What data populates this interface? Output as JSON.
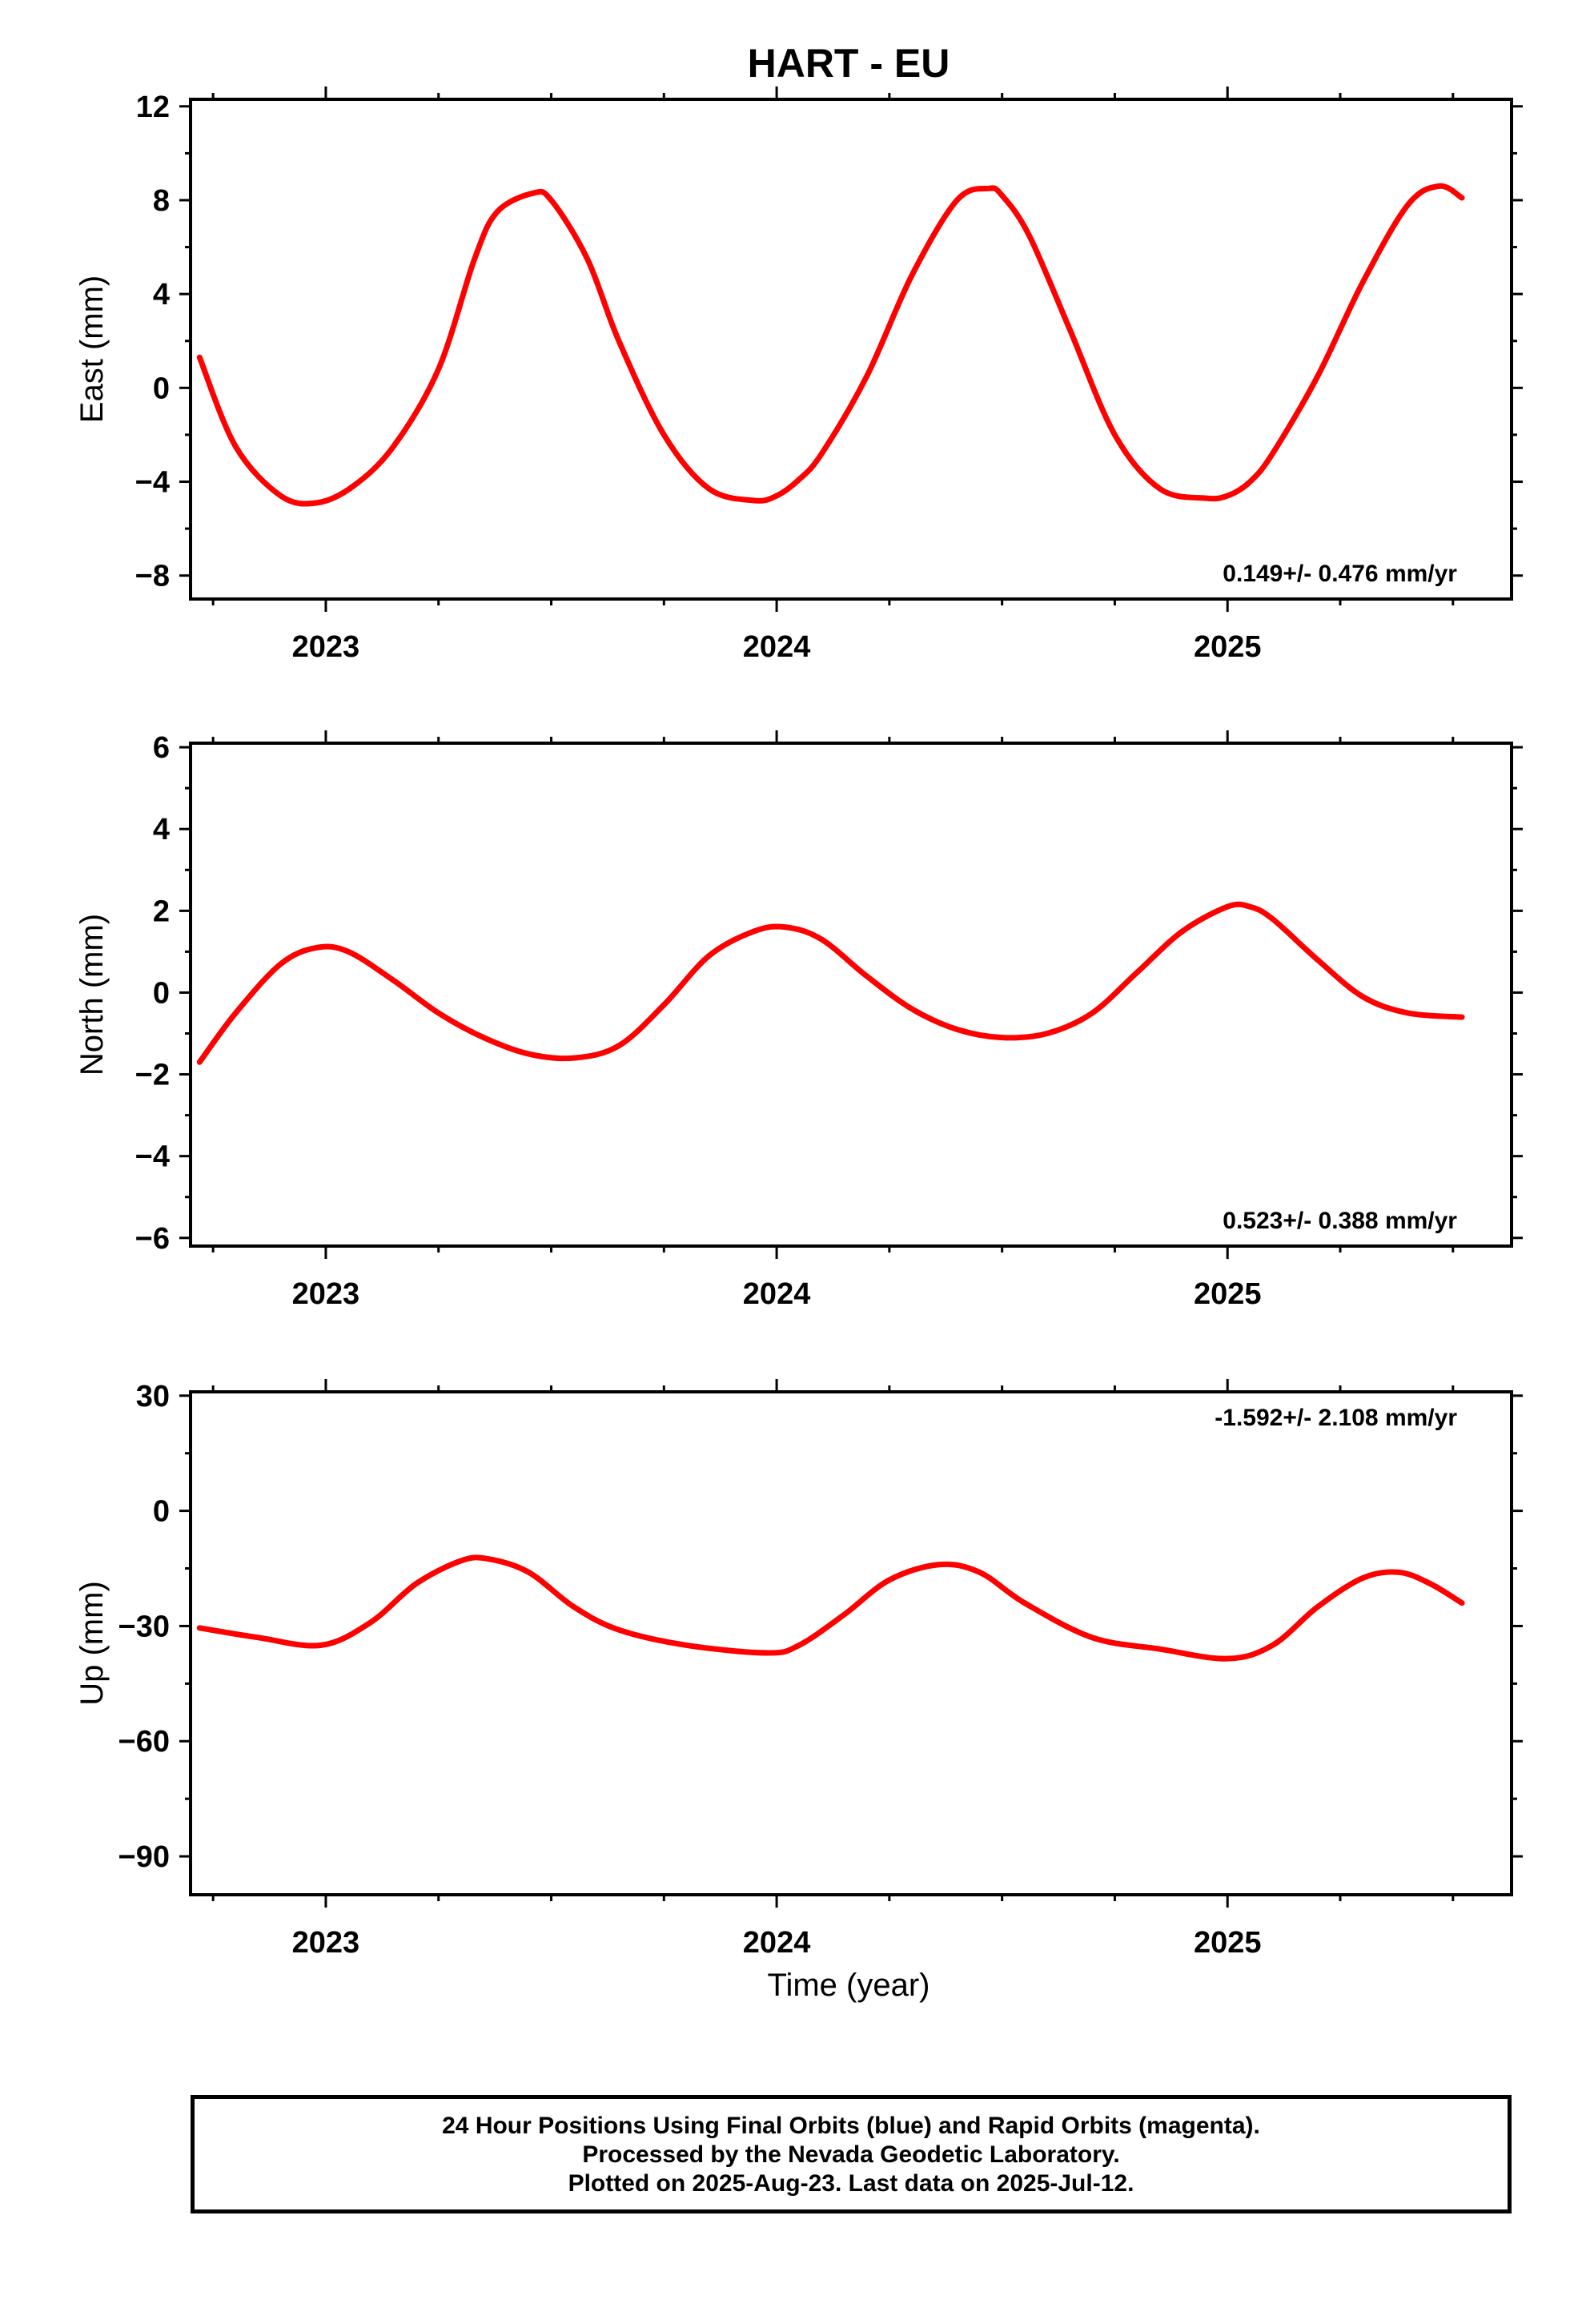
{
  "title": "HART - EU",
  "xlabel": "Time (year)",
  "footer": {
    "line1": "24 Hour Positions Using Final Orbits (blue) and Rapid Orbits (magenta).",
    "line2": "Processed by the Nevada Geodetic Laboratory.",
    "line3": "Plotted on 2025-Aug-23. Last data on 2025-Jul-12."
  },
  "colors": {
    "data": "#0000ff",
    "model": "#ff0000",
    "frame": "#000000"
  },
  "chart_data": [
    {
      "type": "scatter",
      "ylabel": "East (mm)",
      "xlim": [
        2022.7,
        2025.63
      ],
      "ylim": [
        -9.0,
        12.3
      ],
      "xticks": [
        2023,
        2024,
        2025
      ],
      "yticks": [
        -8,
        -4,
        0,
        4,
        8,
        12
      ],
      "rate_text": "0.149+/- 0.476 mm/yr",
      "rate_position": "bottom-right",
      "series": [],
      "model_curve": {
        "x": [
          2022.72,
          2022.8,
          2022.9,
          2022.98,
          2023.06,
          2023.15,
          2023.25,
          2023.33,
          2023.38,
          2023.46,
          2023.5,
          2023.58,
          2023.65,
          2023.75,
          2023.85,
          2023.95,
          2024.0,
          2024.05,
          2024.1,
          2024.2,
          2024.3,
          2024.4,
          2024.47,
          2024.5,
          2024.56,
          2024.65,
          2024.75,
          2024.85,
          2024.95,
          2025.0,
          2025.05,
          2025.1,
          2025.2,
          2025.3,
          2025.4,
          2025.47,
          2025.52
        ],
        "y": [
          1.3,
          -2.5,
          -4.6,
          -4.9,
          -4.2,
          -2.5,
          0.8,
          5.5,
          7.5,
          8.3,
          8.0,
          5.5,
          2.0,
          -2.0,
          -4.3,
          -4.8,
          -4.6,
          -3.9,
          -2.8,
          0.5,
          4.8,
          8.0,
          8.5,
          8.2,
          6.5,
          2.5,
          -2.0,
          -4.3,
          -4.7,
          -4.6,
          -4.0,
          -2.8,
          0.5,
          4.5,
          7.8,
          8.6,
          8.1
        ]
      }
    },
    {
      "type": "scatter",
      "ylabel": "North (mm)",
      "xlim": [
        2022.7,
        2025.63
      ],
      "ylim": [
        -6.2,
        6.1
      ],
      "xticks": [
        2023,
        2024,
        2025
      ],
      "yticks": [
        -6,
        -4,
        -2,
        0,
        2,
        4,
        6
      ],
      "rate_text": "0.523+/- 0.388 mm/yr",
      "rate_position": "bottom-right",
      "series": [],
      "model_curve": {
        "x": [
          2022.72,
          2022.8,
          2022.9,
          2022.98,
          2023.05,
          2023.15,
          2023.25,
          2023.35,
          2023.45,
          2023.55,
          2023.65,
          2023.75,
          2023.85,
          2023.95,
          2024.02,
          2024.1,
          2024.2,
          2024.3,
          2024.4,
          2024.5,
          2024.6,
          2024.7,
          2024.8,
          2024.9,
          2025.0,
          2025.05,
          2025.1,
          2025.2,
          2025.3,
          2025.4,
          2025.52
        ],
        "y": [
          -1.7,
          -0.5,
          0.7,
          1.1,
          1.0,
          0.3,
          -0.5,
          -1.1,
          -1.5,
          -1.6,
          -1.3,
          -0.3,
          0.9,
          1.5,
          1.6,
          1.3,
          0.4,
          -0.4,
          -0.9,
          -1.1,
          -1.0,
          -0.5,
          0.5,
          1.5,
          2.1,
          2.1,
          1.8,
          0.8,
          -0.1,
          -0.5,
          -0.6
        ]
      }
    },
    {
      "type": "scatter",
      "ylabel": "Up (mm)",
      "xlim": [
        2022.7,
        2025.63
      ],
      "ylim": [
        -100,
        31
      ],
      "xticks": [
        2023,
        2024,
        2025
      ],
      "yticks": [
        -90,
        -60,
        -30,
        0,
        30
      ],
      "rate_text": "-1.592+/- 2.108 mm/yr",
      "rate_position": "top-right",
      "series": [],
      "model_curve": {
        "x": [
          2022.72,
          2022.85,
          2022.99,
          2023.1,
          2023.2,
          2023.3,
          2023.36,
          2023.45,
          2023.55,
          2023.65,
          2023.8,
          2023.98,
          2024.05,
          2024.15,
          2024.25,
          2024.36,
          2024.45,
          2024.55,
          2024.7,
          2024.85,
          2025.0,
          2025.1,
          2025.2,
          2025.3,
          2025.38,
          2025.45,
          2025.52
        ],
        "y": [
          -30.5,
          -33,
          -35,
          -29,
          -19,
          -13,
          -12.5,
          -16,
          -25,
          -31,
          -35,
          -37,
          -35,
          -27,
          -18,
          -14,
          -16,
          -24,
          -33,
          -36,
          -38.5,
          -35,
          -25,
          -17.5,
          -16,
          -19,
          -24
        ]
      }
    }
  ]
}
